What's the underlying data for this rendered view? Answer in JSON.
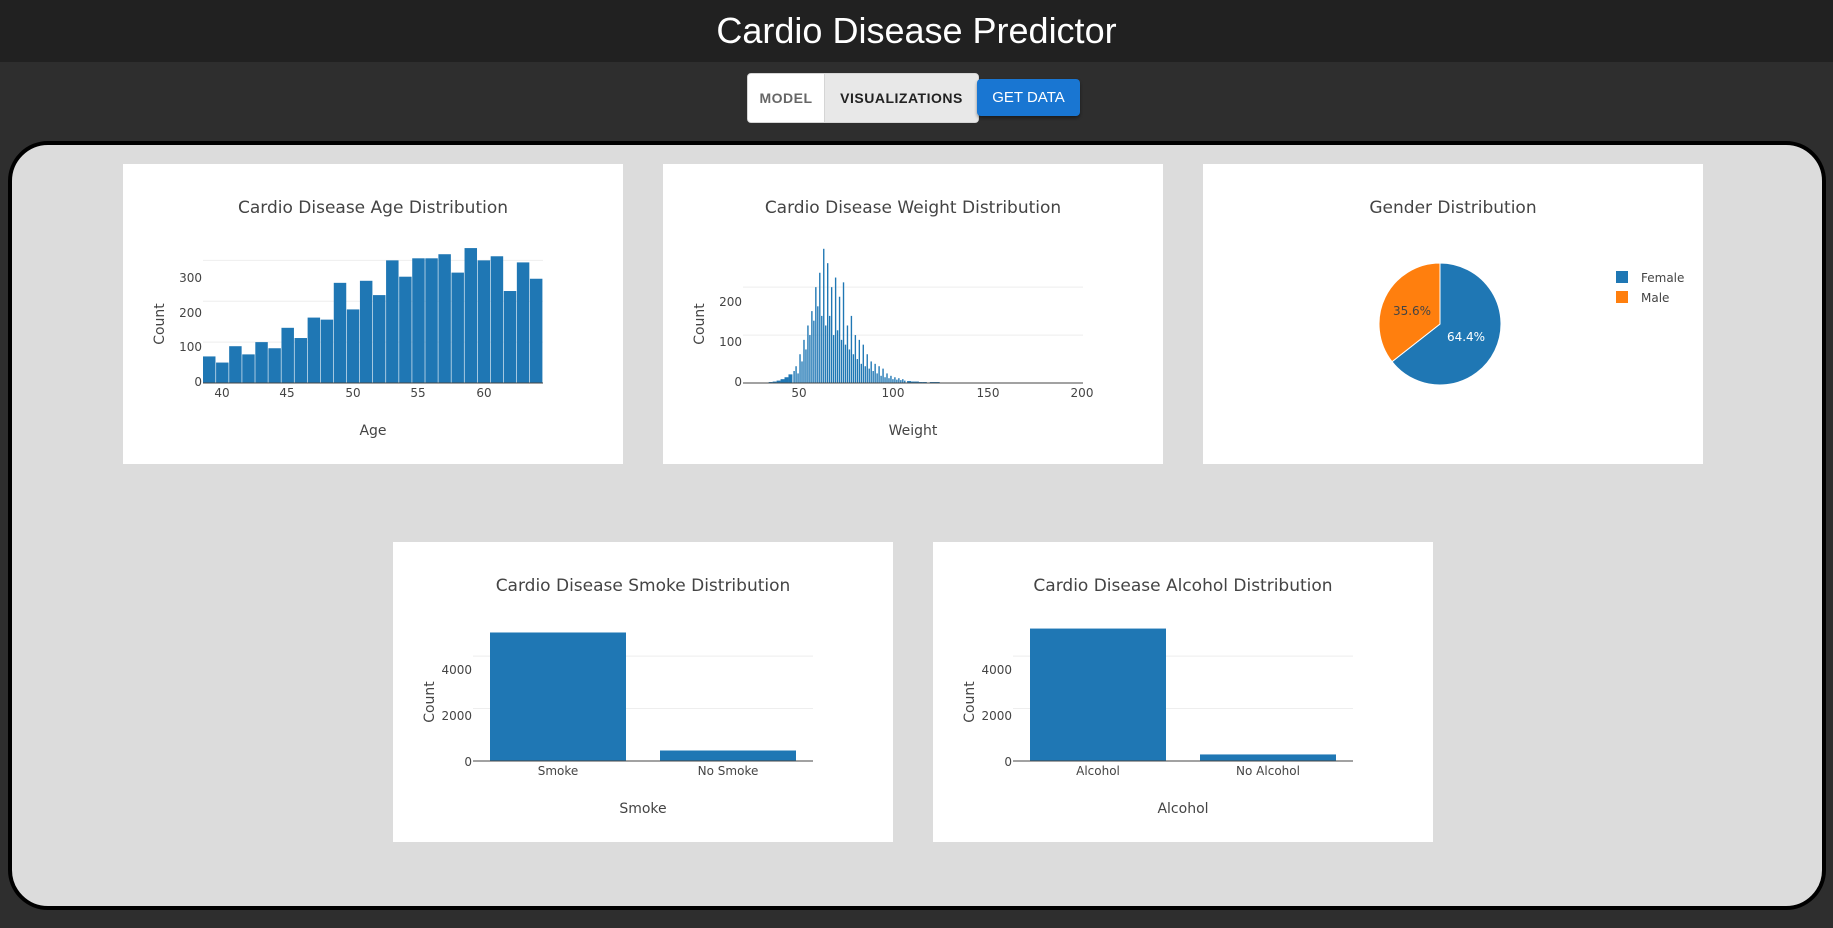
{
  "app": {
    "title": "Cardio Disease Predictor"
  },
  "tabs": [
    {
      "label": "MODEL",
      "active": false
    },
    {
      "label": "VISUALIZATIONS",
      "active": true
    }
  ],
  "get_data_label": "GET DATA",
  "colors": {
    "bar": "#1f77b4",
    "male": "#ff7f0e",
    "header": "#212121",
    "button": "#1976d2"
  },
  "charts": {
    "age": {
      "title": "Cardio Disease Age Distribution",
      "xlabel": "Age",
      "ylabel": "Count",
      "xticks": [
        "40",
        "45",
        "50",
        "55",
        "60"
      ],
      "yticks": [
        "0",
        "100",
        "200",
        "300"
      ]
    },
    "weight": {
      "title": "Cardio Disease Weight Distribution",
      "xlabel": "Weight",
      "ylabel": "Count",
      "xticks": [
        "50",
        "100",
        "150",
        "200"
      ],
      "yticks": [
        "0",
        "100",
        "200"
      ]
    },
    "gender": {
      "title": "Gender Distribution",
      "slices": [
        {
          "label": "Female",
          "pct": "64.4%",
          "value": 64.4
        },
        {
          "label": "Male",
          "pct": "35.6%",
          "value": 35.6
        }
      ]
    },
    "smoke": {
      "title": "Cardio Disease Smoke Distribution",
      "xlabel": "Smoke",
      "ylabel": "Count",
      "categories": [
        "Smoke",
        "No Smoke"
      ],
      "yticks": [
        "0",
        "2000",
        "4000"
      ]
    },
    "alcohol": {
      "title": "Cardio Disease Alcohol Distribution",
      "xlabel": "Alcohol",
      "ylabel": "Count",
      "categories": [
        "Alcohol",
        "No Alcohol"
      ],
      "yticks": [
        "0",
        "2000",
        "4000"
      ]
    }
  },
  "chart_data": [
    {
      "type": "bar",
      "title": "Cardio Disease Age Distribution",
      "xlabel": "Age",
      "ylabel": "Count",
      "x": [
        39,
        40,
        41,
        42,
        43,
        44,
        45,
        46,
        47,
        48,
        49,
        50,
        51,
        52,
        53,
        54,
        55,
        56,
        57,
        58,
        59,
        60,
        61,
        62,
        63,
        64
      ],
      "values": [
        65,
        50,
        90,
        70,
        100,
        85,
        135,
        110,
        160,
        155,
        245,
        180,
        250,
        215,
        300,
        260,
        305,
        305,
        315,
        270,
        330,
        300,
        310,
        225,
        295,
        255
      ],
      "ylim": [
        0,
        340
      ],
      "xlim": [
        38.5,
        64.5
      ]
    },
    {
      "type": "bar",
      "title": "Cardio Disease Weight Distribution",
      "xlabel": "Weight",
      "ylabel": "Count",
      "x": [
        38,
        40,
        42,
        44,
        46,
        48,
        50,
        52,
        54,
        55,
        56,
        57,
        58,
        59,
        60,
        61,
        62,
        63,
        64,
        65,
        66,
        67,
        68,
        69,
        70,
        71,
        72,
        73,
        74,
        75,
        76,
        77,
        78,
        79,
        80,
        81,
        82,
        83,
        84,
        85,
        86,
        87,
        88,
        89,
        90,
        91,
        92,
        93,
        94,
        95,
        96,
        97,
        98,
        99,
        100,
        101,
        102,
        103,
        104,
        105,
        106,
        107,
        108,
        109,
        110,
        112,
        114,
        116,
        118,
        120,
        125,
        130,
        140,
        150,
        160,
        170,
        180,
        190
      ],
      "values": [
        1,
        1,
        2,
        3,
        5,
        8,
        12,
        18,
        25,
        35,
        20,
        60,
        45,
        90,
        70,
        120,
        100,
        150,
        130,
        200,
        160,
        230,
        140,
        280,
        120,
        250,
        140,
        200,
        100,
        220,
        110,
        180,
        90,
        210,
        80,
        120,
        70,
        140,
        60,
        100,
        50,
        90,
        40,
        80,
        35,
        60,
        30,
        45,
        25,
        40,
        20,
        35,
        15,
        30,
        12,
        20,
        10,
        15,
        8,
        12,
        7,
        10,
        6,
        8,
        5,
        4,
        3,
        3,
        2,
        2,
        2,
        1,
        1,
        1,
        1,
        1,
        1,
        1
      ],
      "ylim": [
        0,
        290
      ],
      "xlim": [
        28,
        200
      ]
    },
    {
      "type": "pie",
      "title": "Gender Distribution",
      "labels": [
        "Female",
        "Male"
      ],
      "values": [
        64.4,
        35.6
      ],
      "legend": "top-right"
    },
    {
      "type": "bar",
      "title": "Cardio Disease Smoke Distribution",
      "xlabel": "Smoke",
      "ylabel": "Count",
      "categories": [
        "Smoke",
        "No Smoke"
      ],
      "values": [
        4900,
        400
      ],
      "ylim": [
        0,
        5300
      ]
    },
    {
      "type": "bar",
      "title": "Cardio Disease Alcohol Distribution",
      "xlabel": "Alcohol",
      "ylabel": "Count",
      "categories": [
        "Alcohol",
        "No Alcohol"
      ],
      "values": [
        5050,
        250
      ],
      "ylim": [
        0,
        5300
      ]
    }
  ]
}
